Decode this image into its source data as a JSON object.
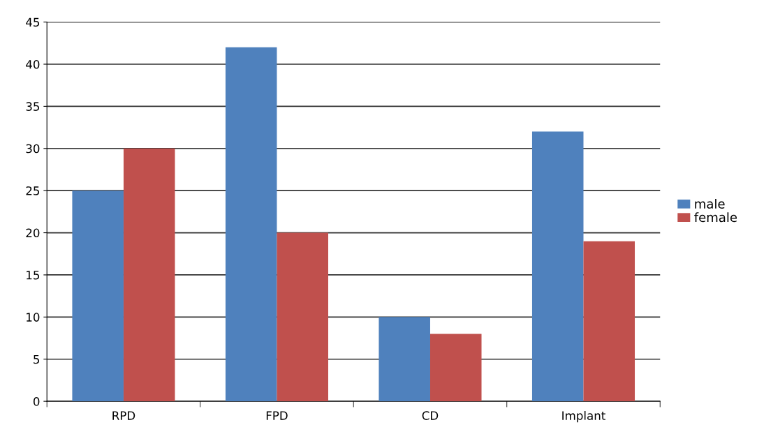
{
  "chart_data": {
    "type": "bar",
    "categories": [
      "RPD",
      "FPD",
      "CD",
      "Implant"
    ],
    "series": [
      {
        "name": "male",
        "color": "#4f81bd",
        "values": [
          25,
          42,
          10,
          32
        ]
      },
      {
        "name": "female",
        "color": "#c0504d",
        "values": [
          30,
          20,
          8,
          19
        ]
      }
    ],
    "ylim": [
      0,
      45
    ],
    "yticks": [
      0,
      5,
      10,
      15,
      20,
      25,
      30,
      35,
      40,
      45
    ],
    "grid": "y",
    "legend": "right"
  }
}
